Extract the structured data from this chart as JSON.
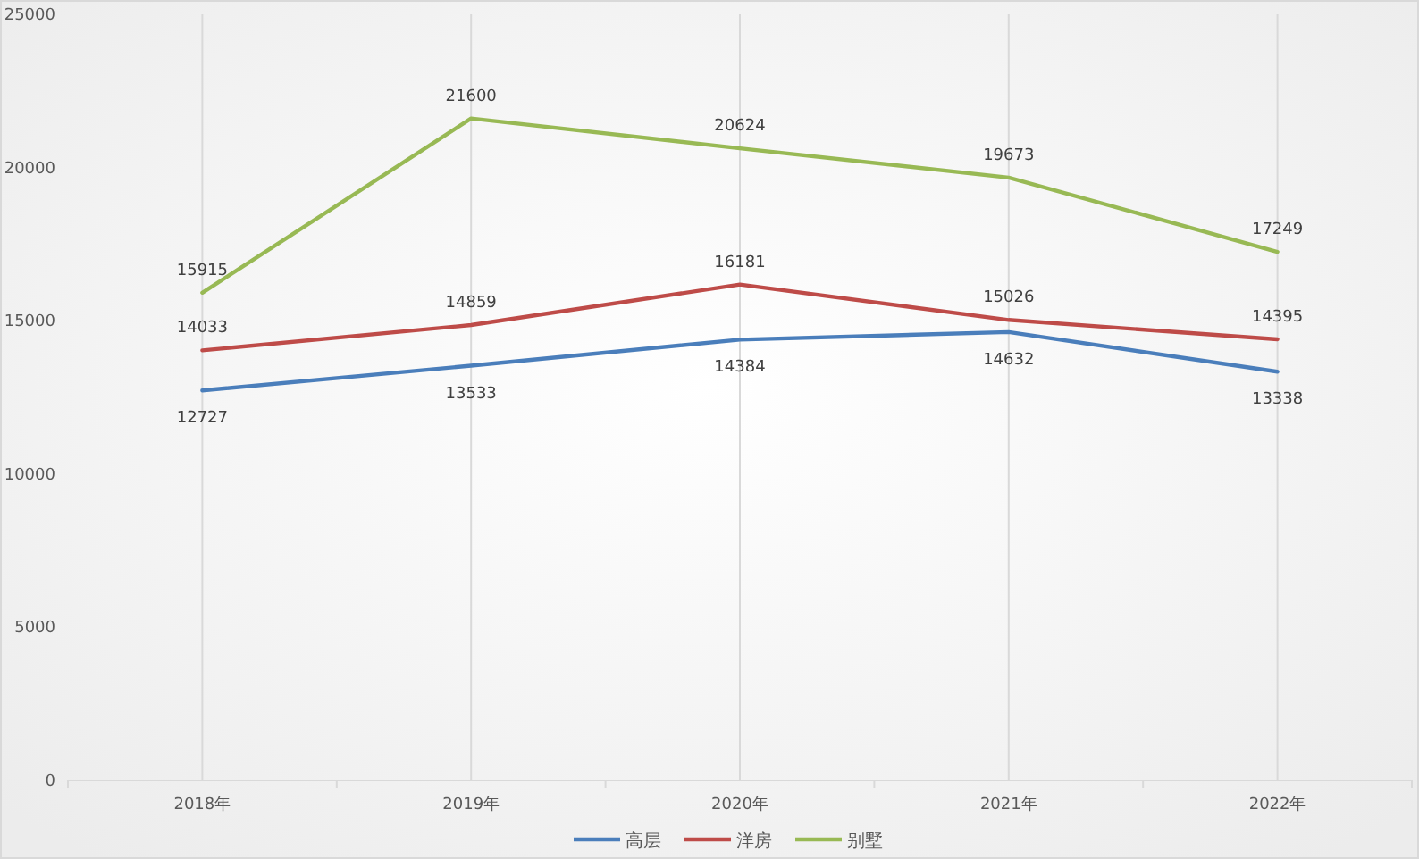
{
  "chart_data": {
    "type": "line",
    "categories": [
      "2018年",
      "2019年",
      "2020年",
      "2021年",
      "2022年"
    ],
    "series": [
      {
        "name": "高层",
        "color": "#4a7ebb",
        "values": [
          12727,
          13533,
          14384,
          14632,
          13338
        ]
      },
      {
        "name": "洋房",
        "color": "#be4b48",
        "values": [
          14033,
          14859,
          16181,
          15026,
          14395
        ]
      },
      {
        "name": "别墅",
        "color": "#98b954",
        "values": [
          15915,
          21600,
          20624,
          19673,
          17249
        ]
      }
    ],
    "ylim": [
      0,
      25000
    ],
    "yticks": [
      0,
      5000,
      10000,
      15000,
      20000,
      25000
    ],
    "grid": "x",
    "legend": "bottom",
    "data_labels": true
  }
}
